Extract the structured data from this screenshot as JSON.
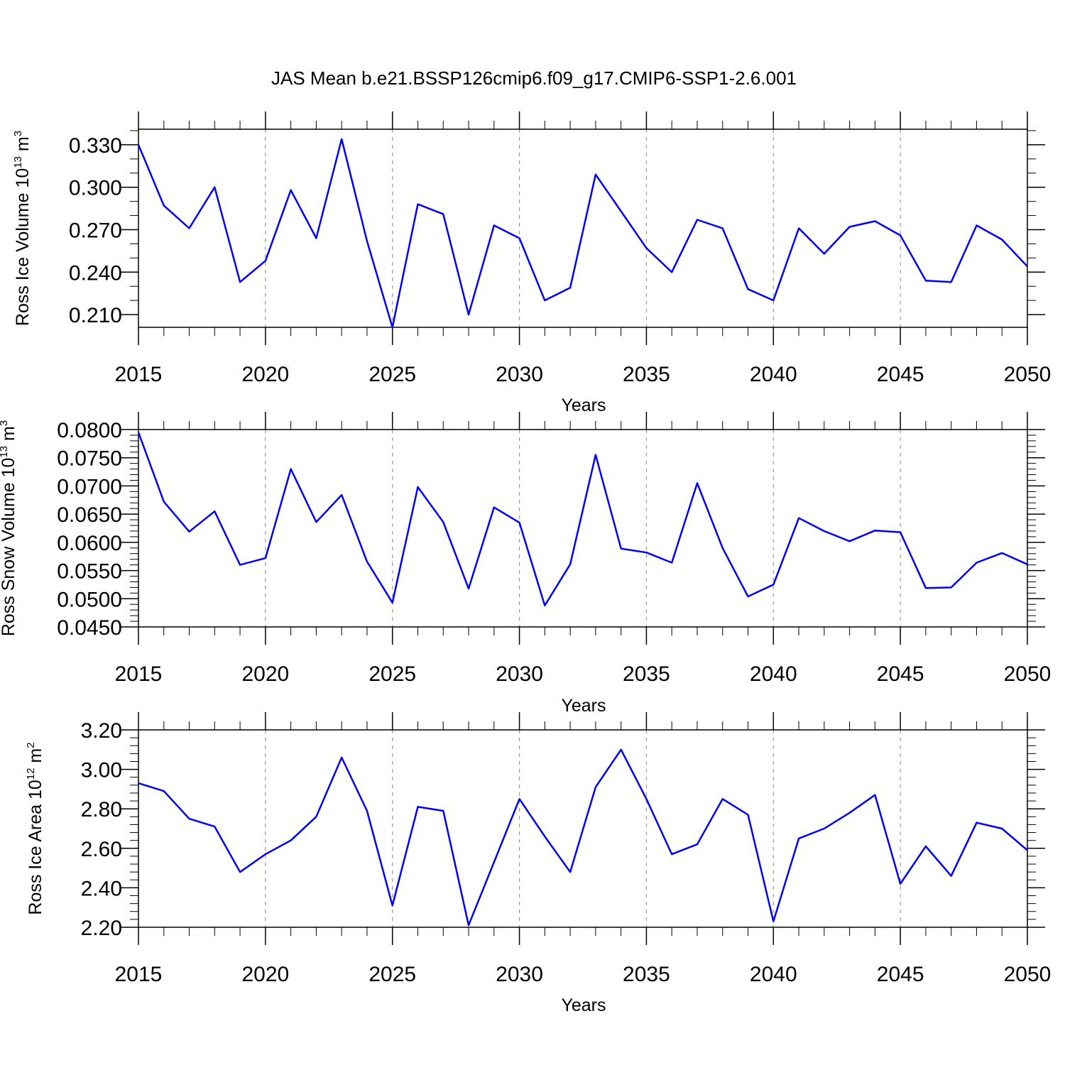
{
  "figure": {
    "title": "JAS Mean b.e21.BSSP126cmip6.f09_g17.CMIP6-SSP1-2.6.001",
    "line_color": "#0000ff",
    "grid_color": "#999999"
  },
  "chart_data": [
    {
      "type": "line",
      "title": "",
      "xlabel": "Years",
      "ylabel": "Ross Ice Volume 10",
      "ylabel_exp": "13",
      "ylabel_unit": "m",
      "ylabel_unit_exp": "3",
      "xlim": [
        2015,
        2050
      ],
      "ylim": [
        0.201,
        0.341
      ],
      "xticks": [
        2015,
        2020,
        2025,
        2030,
        2035,
        2040,
        2045,
        2050
      ],
      "xtick_labels": [
        "2015",
        "2020",
        "2025",
        "2030",
        "2035",
        "2040",
        "2045",
        "2050"
      ],
      "yticks": [
        0.21,
        0.24,
        0.27,
        0.3,
        0.33
      ],
      "ytick_labels": [
        "0.210",
        "0.240",
        "0.270",
        "0.300",
        "0.330"
      ],
      "y_minor_step": 0.01,
      "grid": "vertical dashed",
      "series": [
        {
          "name": "Ross Ice Volume",
          "x": [
            2015,
            2016,
            2017,
            2018,
            2019,
            2020,
            2021,
            2022,
            2023,
            2024,
            2025,
            2026,
            2027,
            2028,
            2029,
            2030,
            2031,
            2032,
            2033,
            2034,
            2035,
            2036,
            2037,
            2038,
            2039,
            2040,
            2041,
            2042,
            2043,
            2044,
            2045,
            2046,
            2047,
            2048,
            2049,
            2050
          ],
          "values": [
            0.33,
            0.287,
            0.271,
            0.3,
            0.233,
            0.248,
            0.298,
            0.264,
            0.334,
            0.262,
            0.201,
            0.288,
            0.281,
            0.21,
            0.273,
            0.264,
            0.22,
            0.229,
            0.309,
            0.283,
            0.257,
            0.24,
            0.277,
            0.271,
            0.228,
            0.22,
            0.271,
            0.253,
            0.272,
            0.276,
            0.266,
            0.234,
            0.233,
            0.273,
            0.263,
            0.244
          ]
        }
      ]
    },
    {
      "type": "line",
      "title": "",
      "xlabel": "Years",
      "ylabel": "Ross Snow Volume 10",
      "ylabel_exp": "13",
      "ylabel_unit": "m",
      "ylabel_unit_exp": "3",
      "xlim": [
        2015,
        2050
      ],
      "ylim": [
        0.045,
        0.08
      ],
      "xticks": [
        2015,
        2020,
        2025,
        2030,
        2035,
        2040,
        2045,
        2050
      ],
      "xtick_labels": [
        "2015",
        "2020",
        "2025",
        "2030",
        "2035",
        "2040",
        "2045",
        "2050"
      ],
      "yticks": [
        0.045,
        0.05,
        0.055,
        0.06,
        0.065,
        0.07,
        0.075,
        0.08
      ],
      "ytick_labels": [
        "0.0450",
        "0.0500",
        "0.0550",
        "0.0600",
        "0.0650",
        "0.0700",
        "0.0750",
        "0.0800"
      ],
      "y_minor_step": 0.001,
      "grid": "vertical dashed",
      "series": [
        {
          "name": "Ross Snow Volume",
          "x": [
            2015,
            2016,
            2017,
            2018,
            2019,
            2020,
            2021,
            2022,
            2023,
            2024,
            2025,
            2026,
            2027,
            2028,
            2029,
            2030,
            2031,
            2032,
            2033,
            2034,
            2035,
            2036,
            2037,
            2038,
            2039,
            2040,
            2041,
            2042,
            2043,
            2044,
            2045,
            2046,
            2047,
            2048,
            2049,
            2050
          ],
          "values": [
            0.0795,
            0.0672,
            0.0619,
            0.0655,
            0.056,
            0.0572,
            0.073,
            0.0636,
            0.0684,
            0.0566,
            0.0493,
            0.0698,
            0.0636,
            0.0518,
            0.0662,
            0.0635,
            0.0488,
            0.0561,
            0.0755,
            0.0589,
            0.0582,
            0.0564,
            0.0705,
            0.059,
            0.0504,
            0.0525,
            0.0643,
            0.062,
            0.0602,
            0.0621,
            0.0618,
            0.0519,
            0.052,
            0.0564,
            0.0581,
            0.0561
          ]
        }
      ]
    },
    {
      "type": "line",
      "title": "",
      "xlabel": "Years",
      "ylabel": "Ross Ice Area 10",
      "ylabel_exp": "12",
      "ylabel_unit": "m",
      "ylabel_unit_exp": "2",
      "xlim": [
        2015,
        2050
      ],
      "ylim": [
        2.2,
        3.2
      ],
      "xticks": [
        2015,
        2020,
        2025,
        2030,
        2035,
        2040,
        2045,
        2050
      ],
      "xtick_labels": [
        "2015",
        "2020",
        "2025",
        "2030",
        "2035",
        "2040",
        "2045",
        "2050"
      ],
      "yticks": [
        2.2,
        2.4,
        2.6,
        2.8,
        3.0,
        3.2
      ],
      "ytick_labels": [
        "2.20",
        "2.40",
        "2.60",
        "2.80",
        "3.00",
        "3.20"
      ],
      "y_minor_step": 0.04,
      "grid": "vertical dashed",
      "series": [
        {
          "name": "Ross Ice Area",
          "x": [
            2015,
            2016,
            2017,
            2018,
            2019,
            2020,
            2021,
            2022,
            2023,
            2024,
            2025,
            2026,
            2027,
            2028,
            2029,
            2030,
            2031,
            2032,
            2033,
            2034,
            2035,
            2036,
            2037,
            2038,
            2039,
            2040,
            2041,
            2042,
            2043,
            2044,
            2045,
            2046,
            2047,
            2048,
            2049,
            2050
          ],
          "values": [
            2.93,
            2.89,
            2.75,
            2.71,
            2.48,
            2.57,
            2.64,
            2.76,
            3.06,
            2.79,
            2.31,
            2.81,
            2.79,
            2.21,
            2.53,
            2.85,
            2.66,
            2.48,
            2.91,
            3.1,
            2.85,
            2.57,
            2.62,
            2.85,
            2.77,
            2.23,
            2.65,
            2.7,
            2.78,
            2.87,
            2.42,
            2.61,
            2.46,
            2.73,
            2.7,
            2.59
          ]
        }
      ]
    }
  ]
}
